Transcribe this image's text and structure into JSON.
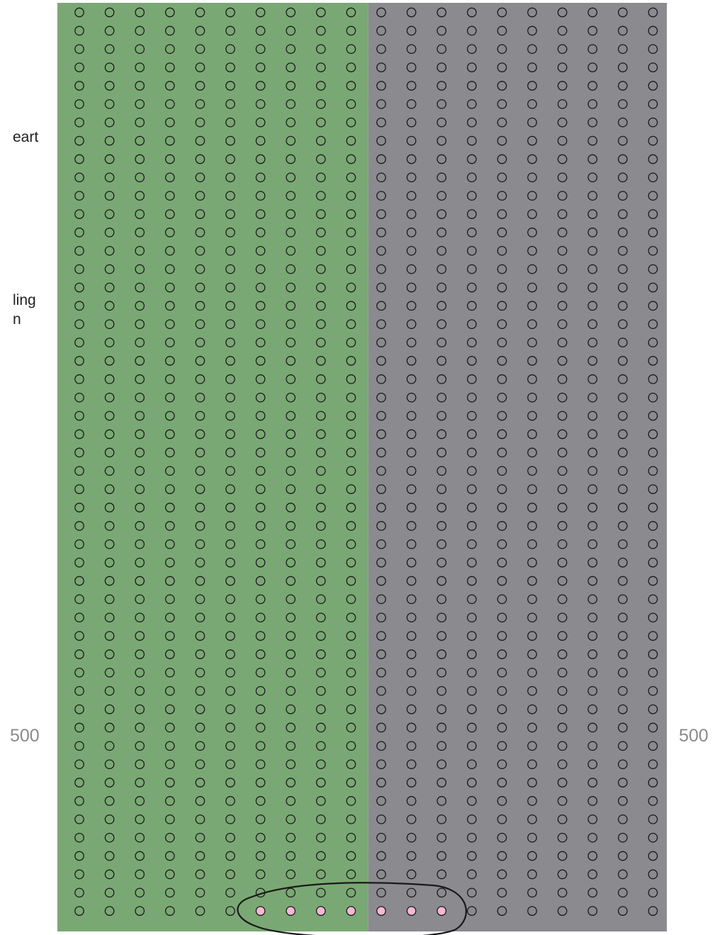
{
  "chart_data": {
    "type": "dot-matrix",
    "grid": {
      "columns": 20,
      "rows": 50,
      "total": 1000
    },
    "regions": [
      {
        "columns": [
          1,
          10
        ],
        "color": "#7aa874"
      },
      {
        "columns": [
          11,
          20
        ],
        "color": "#8a8a8f"
      }
    ],
    "highlighted": {
      "row": 50,
      "columns": [
        7,
        8,
        9,
        10,
        11,
        12,
        13
      ],
      "count": 7,
      "fill": "#f2b8d4",
      "circled": true
    },
    "dot_outline_color": "#1a1a1a",
    "side_texts": [
      "eart",
      "ling",
      "n"
    ],
    "scale_labels": {
      "left": "500",
      "right": "500"
    }
  }
}
